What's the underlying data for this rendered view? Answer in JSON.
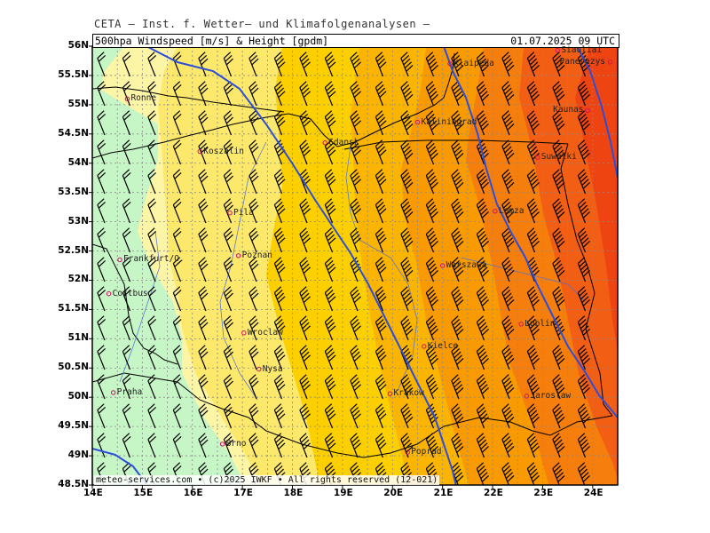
{
  "header": {
    "title": "CETA — Inst. f. Wetter— und Klimafolgenanalysen —",
    "parameter": "500hpa Windspeed [m/s] & Height [gpdm]",
    "datetime": "01.07.2025 09 UTC"
  },
  "footer": "meteo-services.com • (c)2025 IWKF • All rights reserved (12-021)",
  "axes": {
    "lat_labels": [
      "56N",
      "55.5N",
      "55N",
      "54.5N",
      "54N",
      "53.5N",
      "53N",
      "52.5N",
      "52N",
      "51.5N",
      "51N",
      "50.5N",
      "50N",
      "49.5N",
      "49N",
      "48.5N"
    ],
    "lat_values": [
      56,
      55.5,
      55,
      54.5,
      54,
      53.5,
      53,
      52.5,
      52,
      51.5,
      51,
      50.5,
      50,
      49.5,
      49,
      48.5
    ],
    "lon_labels": [
      "14E",
      "15E",
      "16E",
      "17E",
      "18E",
      "19E",
      "20E",
      "21E",
      "22E",
      "23E",
      "24E"
    ],
    "lon_values": [
      14,
      15,
      16,
      17,
      18,
      19,
      20,
      21,
      22,
      23,
      24
    ],
    "lon_range": [
      14,
      24.5
    ],
    "lat_range": [
      48.5,
      56
    ]
  },
  "cities": [
    {
      "name": "Ronne",
      "lon": 14.7,
      "lat": 55.1
    },
    {
      "name": "Koszalin",
      "lon": 16.15,
      "lat": 54.2
    },
    {
      "name": "Gdansk",
      "lon": 18.65,
      "lat": 54.35
    },
    {
      "name": "Kaliningrad",
      "lon": 20.5,
      "lat": 54.7
    },
    {
      "name": "Klaipeda",
      "lon": 21.15,
      "lat": 55.7
    },
    {
      "name": "Siauliai",
      "lon": 23.3,
      "lat": 55.93
    },
    {
      "name": "Panevezys",
      "lon": 24.35,
      "lat": 55.73
    },
    {
      "name": "Kaunas",
      "lon": 23.9,
      "lat": 54.9
    },
    {
      "name": "Suwalki",
      "lon": 22.9,
      "lat": 54.1
    },
    {
      "name": "Pila",
      "lon": 16.75,
      "lat": 53.15
    },
    {
      "name": "Lomza",
      "lon": 22.05,
      "lat": 53.18
    },
    {
      "name": "Poznan",
      "lon": 16.92,
      "lat": 52.42
    },
    {
      "name": "Warszawa",
      "lon": 21.0,
      "lat": 52.25
    },
    {
      "name": "Frankfurt/O.",
      "lon": 14.55,
      "lat": 52.35
    },
    {
      "name": "Cottbus",
      "lon": 14.33,
      "lat": 51.77
    },
    {
      "name": "Wroclaw",
      "lon": 17.03,
      "lat": 51.1
    },
    {
      "name": "Lublin",
      "lon": 22.57,
      "lat": 51.25
    },
    {
      "name": "Nysa",
      "lon": 17.33,
      "lat": 50.48
    },
    {
      "name": "Kielce",
      "lon": 20.63,
      "lat": 50.87
    },
    {
      "name": "Praha",
      "lon": 14.42,
      "lat": 50.08
    },
    {
      "name": "Krakow",
      "lon": 19.95,
      "lat": 50.06
    },
    {
      "name": "Jaroslaw",
      "lon": 22.68,
      "lat": 50.02
    },
    {
      "name": "Brno",
      "lon": 16.6,
      "lat": 49.2
    },
    {
      "name": "Poprad",
      "lon": 20.3,
      "lat": 49.06
    }
  ],
  "colors": {
    "speed_bands": [
      "#c6f5c6",
      "#fdf5a6",
      "#fce86a",
      "#fcd000",
      "#fbb400",
      "#f99a00",
      "#f67e0c",
      "#f25e14",
      "#ee4412"
    ],
    "height_contour": "#2d4ed8",
    "grid": "#8a8a8a",
    "border": "#000000",
    "river": "#4f6fd8"
  }
}
